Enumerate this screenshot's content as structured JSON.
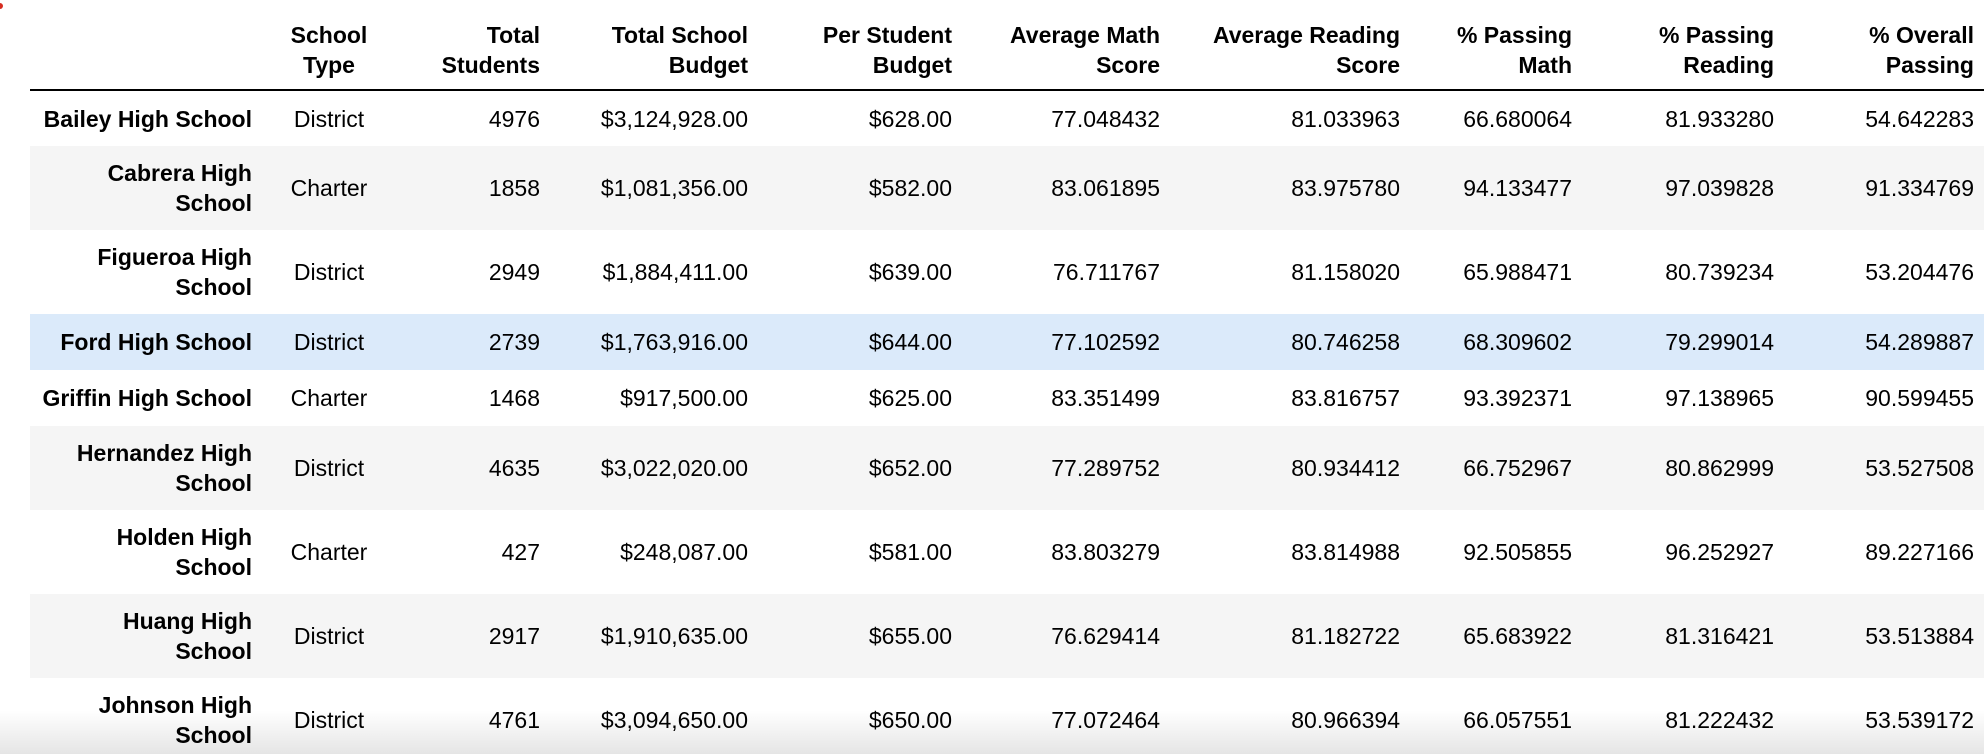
{
  "table": {
    "columns": [
      "School Type",
      "Total Students",
      "Total School Budget",
      "Per Student Budget",
      "Average Math Score",
      "Average Reading Score",
      "% Passing Math",
      "% Passing Reading",
      "% Overall Passing"
    ],
    "highlighted_row": "Ford High School",
    "rows": [
      {
        "school": "Bailey High School",
        "type": "District",
        "total_students": "4976",
        "budget": "$3,124,928.00",
        "per_student": "$628.00",
        "avg_math": "77.048432",
        "avg_reading": "81.033963",
        "pct_math": "66.680064",
        "pct_reading": "81.933280",
        "pct_overall": "54.642283"
      },
      {
        "school": "Cabrera High School",
        "type": "Charter",
        "total_students": "1858",
        "budget": "$1,081,356.00",
        "per_student": "$582.00",
        "avg_math": "83.061895",
        "avg_reading": "83.975780",
        "pct_math": "94.133477",
        "pct_reading": "97.039828",
        "pct_overall": "91.334769"
      },
      {
        "school": "Figueroa High School",
        "type": "District",
        "total_students": "2949",
        "budget": "$1,884,411.00",
        "per_student": "$639.00",
        "avg_math": "76.711767",
        "avg_reading": "81.158020",
        "pct_math": "65.988471",
        "pct_reading": "80.739234",
        "pct_overall": "53.204476"
      },
      {
        "school": "Ford High School",
        "type": "District",
        "total_students": "2739",
        "budget": "$1,763,916.00",
        "per_student": "$644.00",
        "avg_math": "77.102592",
        "avg_reading": "80.746258",
        "pct_math": "68.309602",
        "pct_reading": "79.299014",
        "pct_overall": "54.289887"
      },
      {
        "school": "Griffin High School",
        "type": "Charter",
        "total_students": "1468",
        "budget": "$917,500.00",
        "per_student": "$625.00",
        "avg_math": "83.351499",
        "avg_reading": "83.816757",
        "pct_math": "93.392371",
        "pct_reading": "97.138965",
        "pct_overall": "90.599455"
      },
      {
        "school": "Hernandez High School",
        "type": "District",
        "total_students": "4635",
        "budget": "$3,022,020.00",
        "per_student": "$652.00",
        "avg_math": "77.289752",
        "avg_reading": "80.934412",
        "pct_math": "66.752967",
        "pct_reading": "80.862999",
        "pct_overall": "53.527508"
      },
      {
        "school": "Holden High School",
        "type": "Charter",
        "total_students": "427",
        "budget": "$248,087.00",
        "per_student": "$581.00",
        "avg_math": "83.803279",
        "avg_reading": "83.814988",
        "pct_math": "92.505855",
        "pct_reading": "96.252927",
        "pct_overall": "89.227166"
      },
      {
        "school": "Huang High School",
        "type": "District",
        "total_students": "2917",
        "budget": "$1,910,635.00",
        "per_student": "$655.00",
        "avg_math": "76.629414",
        "avg_reading": "81.182722",
        "pct_math": "65.683922",
        "pct_reading": "81.316421",
        "pct_overall": "53.513884"
      },
      {
        "school": "Johnson High School",
        "type": "District",
        "total_students": "4761",
        "budget": "$3,094,650.00",
        "per_student": "$650.00",
        "avg_math": "77.072464",
        "avg_reading": "80.966394",
        "pct_math": "66.057551",
        "pct_reading": "81.222432",
        "pct_overall": "53.539172"
      }
    ]
  }
}
